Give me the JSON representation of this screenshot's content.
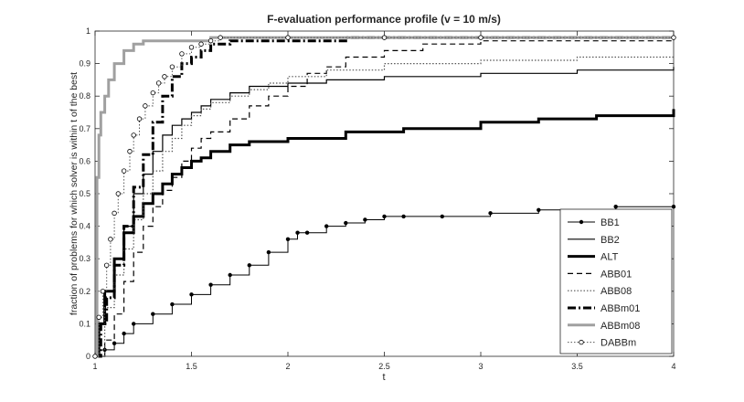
{
  "chart_data": {
    "type": "line",
    "title": "F-evaluation performance profile (v = 10 m/s)",
    "xlabel": "t",
    "ylabel": "fraction of problems for which solver is within t of the best",
    "xlim": [
      1,
      4
    ],
    "ylim": [
      0,
      1
    ],
    "xticks": [
      "1",
      "1.5",
      "2",
      "2.5",
      "3",
      "3.5",
      "4"
    ],
    "yticks": [
      "0",
      "0.1",
      "0.2",
      "0.3",
      "0.4",
      "0.5",
      "0.6",
      "0.7",
      "0.8",
      "0.9",
      "1"
    ],
    "grid": false,
    "legend_position": "bottom-right",
    "series": [
      {
        "name": "BB1",
        "style": "solid-dot",
        "color": "#000000",
        "x": [
          1.0,
          1.05,
          1.1,
          1.15,
          1.2,
          1.3,
          1.4,
          1.5,
          1.6,
          1.7,
          1.8,
          1.9,
          2.0,
          2.05,
          2.1,
          2.2,
          2.3,
          2.4,
          2.5,
          2.6,
          2.8,
          3.05,
          3.3,
          3.7,
          4.0
        ],
        "y": [
          0.0,
          0.02,
          0.04,
          0.07,
          0.1,
          0.13,
          0.16,
          0.19,
          0.22,
          0.25,
          0.28,
          0.32,
          0.36,
          0.38,
          0.38,
          0.4,
          0.41,
          0.42,
          0.43,
          0.43,
          0.43,
          0.44,
          0.45,
          0.46,
          0.46
        ]
      },
      {
        "name": "BB2",
        "style": "solid-thin",
        "color": "#000000",
        "x": [
          1.0,
          1.02,
          1.05,
          1.1,
          1.15,
          1.2,
          1.25,
          1.3,
          1.35,
          1.4,
          1.45,
          1.5,
          1.55,
          1.6,
          1.7,
          1.8,
          2.0,
          2.2,
          2.5,
          3.0,
          3.5,
          4.0
        ],
        "y": [
          0.0,
          0.1,
          0.2,
          0.3,
          0.4,
          0.5,
          0.56,
          0.63,
          0.68,
          0.71,
          0.73,
          0.75,
          0.77,
          0.79,
          0.81,
          0.83,
          0.84,
          0.85,
          0.86,
          0.87,
          0.88,
          0.89
        ]
      },
      {
        "name": "ALT",
        "style": "solid-thick",
        "color": "#000000",
        "x": [
          1.0,
          1.02,
          1.05,
          1.1,
          1.15,
          1.2,
          1.25,
          1.3,
          1.35,
          1.4,
          1.45,
          1.5,
          1.55,
          1.6,
          1.7,
          1.8,
          2.0,
          2.3,
          2.6,
          3.0,
          3.3,
          3.6,
          3.8,
          4.0
        ],
        "y": [
          0.0,
          0.1,
          0.2,
          0.3,
          0.38,
          0.43,
          0.47,
          0.5,
          0.53,
          0.56,
          0.58,
          0.6,
          0.61,
          0.63,
          0.65,
          0.66,
          0.67,
          0.69,
          0.7,
          0.72,
          0.73,
          0.74,
          0.74,
          0.76
        ]
      },
      {
        "name": "ABB01",
        "style": "dashed",
        "color": "#000000",
        "x": [
          1.0,
          1.05,
          1.1,
          1.15,
          1.2,
          1.25,
          1.3,
          1.35,
          1.4,
          1.45,
          1.5,
          1.55,
          1.6,
          1.7,
          1.8,
          1.9,
          2.0,
          2.1,
          2.2,
          2.3,
          2.5,
          2.7,
          3.0,
          4.0
        ],
        "y": [
          0.0,
          0.05,
          0.13,
          0.23,
          0.32,
          0.4,
          0.46,
          0.51,
          0.55,
          0.6,
          0.64,
          0.67,
          0.69,
          0.73,
          0.77,
          0.8,
          0.83,
          0.87,
          0.89,
          0.92,
          0.94,
          0.96,
          0.97,
          0.97
        ]
      },
      {
        "name": "ABB08",
        "style": "dotted",
        "color": "#555555",
        "x": [
          1.0,
          1.05,
          1.1,
          1.15,
          1.2,
          1.25,
          1.3,
          1.35,
          1.4,
          1.45,
          1.5,
          1.55,
          1.6,
          1.7,
          1.8,
          1.9,
          2.0,
          2.2,
          2.5,
          3.0,
          3.5,
          4.0
        ],
        "y": [
          0.0,
          0.15,
          0.25,
          0.33,
          0.42,
          0.5,
          0.57,
          0.63,
          0.67,
          0.71,
          0.74,
          0.76,
          0.78,
          0.8,
          0.82,
          0.84,
          0.86,
          0.88,
          0.9,
          0.91,
          0.92,
          0.92
        ]
      },
      {
        "name": "ABBm01",
        "style": "dashdot-thick",
        "color": "#000000",
        "x": [
          1.0,
          1.03,
          1.06,
          1.1,
          1.15,
          1.2,
          1.25,
          1.3,
          1.35,
          1.4,
          1.45,
          1.5,
          1.55,
          1.6,
          1.7,
          1.8,
          2.0,
          2.3,
          2.5,
          3.0,
          4.0
        ],
        "y": [
          0.0,
          0.1,
          0.18,
          0.28,
          0.4,
          0.52,
          0.62,
          0.72,
          0.8,
          0.86,
          0.9,
          0.92,
          0.94,
          0.96,
          0.97,
          0.97,
          0.97,
          0.98,
          0.98,
          0.98,
          0.98
        ]
      },
      {
        "name": "ABBm08",
        "style": "solid-gray",
        "color": "#a0a0a0",
        "x": [
          1.0,
          1.01,
          1.02,
          1.03,
          1.05,
          1.07,
          1.1,
          1.15,
          1.2,
          1.25,
          1.3,
          1.4,
          1.5,
          1.6,
          2.0,
          3.0,
          4.0
        ],
        "y": [
          0.0,
          0.55,
          0.68,
          0.75,
          0.8,
          0.85,
          0.9,
          0.94,
          0.96,
          0.97,
          0.97,
          0.97,
          0.97,
          0.98,
          0.98,
          0.98,
          0.98
        ]
      },
      {
        "name": "DABBm",
        "style": "dotted-circle",
        "color": "#555555",
        "x": [
          1.0,
          1.02,
          1.04,
          1.06,
          1.08,
          1.1,
          1.12,
          1.15,
          1.18,
          1.2,
          1.23,
          1.26,
          1.3,
          1.33,
          1.36,
          1.4,
          1.45,
          1.5,
          1.55,
          1.6,
          1.65,
          2.0,
          2.5,
          3.0,
          4.0
        ],
        "y": [
          0.0,
          0.12,
          0.2,
          0.28,
          0.36,
          0.44,
          0.5,
          0.57,
          0.63,
          0.68,
          0.73,
          0.77,
          0.81,
          0.84,
          0.86,
          0.89,
          0.93,
          0.95,
          0.96,
          0.97,
          0.98,
          0.98,
          0.98,
          0.98,
          0.98
        ]
      }
    ]
  }
}
